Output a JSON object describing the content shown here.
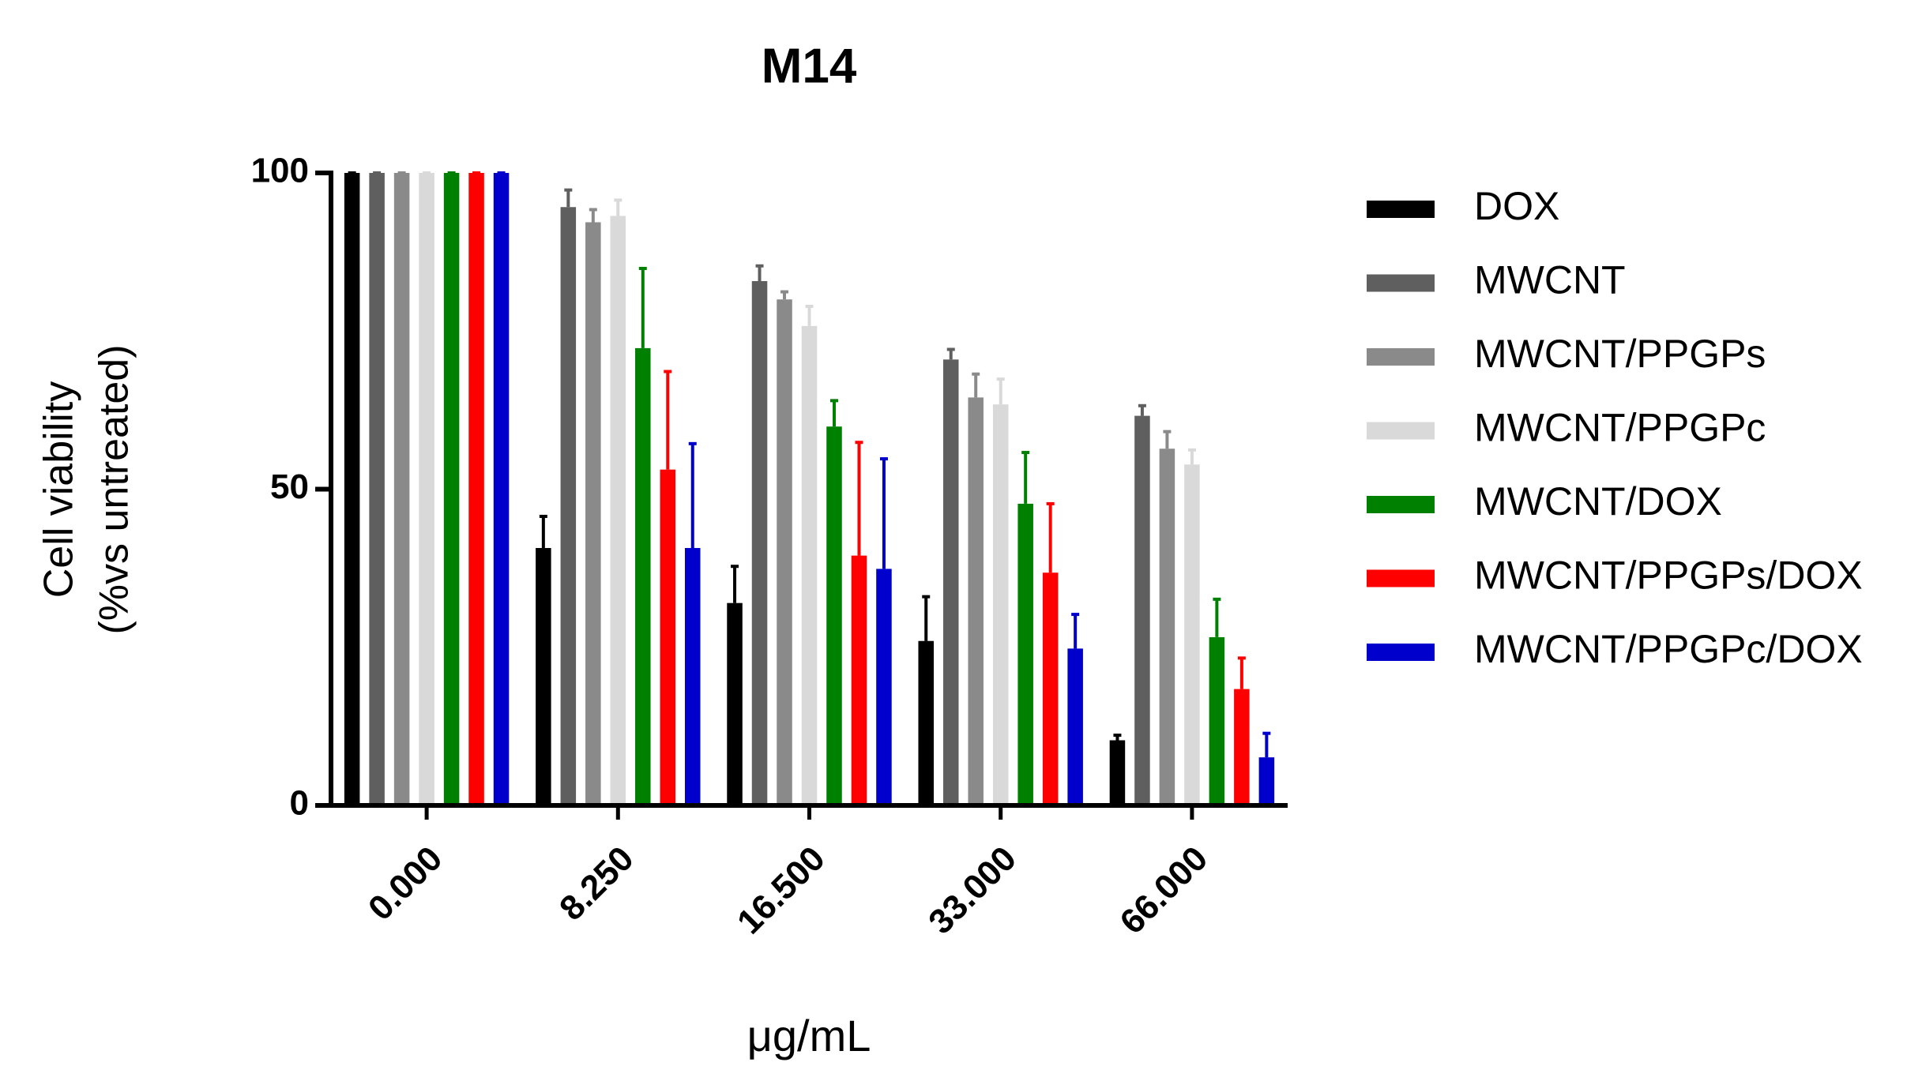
{
  "chart_data": {
    "type": "bar",
    "title": "M14",
    "ylabel": [
      "Cell viability",
      "(%vs untreated)"
    ],
    "xlabel": "μg/mL",
    "categories": [
      "0.000",
      "8.250",
      "16.500",
      "33.000",
      "66.000"
    ],
    "ylim": [
      0,
      100
    ],
    "yticks": [
      0,
      50,
      100
    ],
    "legend": "right",
    "series": [
      {
        "name": "DOX",
        "color": "#000000",
        "values": [
          100,
          40.7,
          32,
          26,
          10.3
        ],
        "errors": [
          0,
          5,
          5.8,
          7,
          0.8
        ]
      },
      {
        "name": "MWCNT",
        "color": "#5f5f5f",
        "values": [
          100,
          94.6,
          82.9,
          70.5,
          61.6
        ],
        "errors": [
          0,
          2.7,
          2.4,
          1.6,
          1.6
        ]
      },
      {
        "name": "MWCNT/PPGPs",
        "color": "#8a8a8a",
        "values": [
          100,
          92.2,
          80,
          64.5,
          56.4
        ],
        "errors": [
          0,
          2,
          1.2,
          3.7,
          2.7
        ]
      },
      {
        "name": "MWCNT/PPGPc",
        "color": "#d9d9d9",
        "values": [
          100,
          93.2,
          75.8,
          63.4,
          53.9
        ],
        "errors": [
          0,
          2.5,
          3.1,
          4,
          2.3
        ]
      },
      {
        "name": "MWCNT/DOX",
        "color": "#008000",
        "values": [
          100,
          72.3,
          59.9,
          47.7,
          26.6
        ],
        "errors": [
          0,
          12.6,
          4.1,
          8.1,
          6
        ]
      },
      {
        "name": "MWCNT/PPGPs/DOX",
        "color": "#ff0000",
        "values": [
          100,
          53.1,
          39.5,
          36.8,
          18.4
        ],
        "errors": [
          0,
          15.5,
          17.9,
          10.9,
          4.9
        ]
      },
      {
        "name": "MWCNT/PPGPc/DOX",
        "color": "#0000cc",
        "values": [
          100,
          40.7,
          37.4,
          24.8,
          7.6
        ],
        "errors": [
          0,
          16.5,
          17.4,
          5.4,
          3.8
        ]
      }
    ]
  }
}
